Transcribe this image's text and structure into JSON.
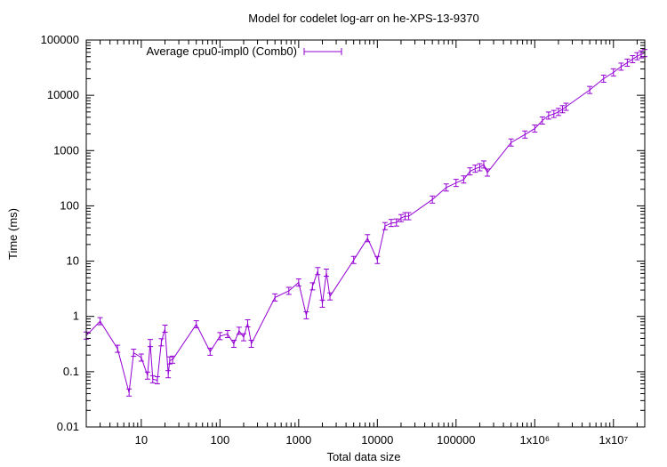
{
  "chart_data": {
    "type": "line",
    "title": "Model for codelet log-arr on he-XPS-13-9370",
    "xlabel": "Total data size",
    "ylabel": "Time (ms)",
    "x_scale": "log",
    "y_scale": "log",
    "xlim": [
      2,
      25000000
    ],
    "ylim": [
      0.01,
      100000
    ],
    "x_ticks": [
      {
        "value": 10,
        "label": "10"
      },
      {
        "value": 100,
        "label": "100"
      },
      {
        "value": 1000,
        "label": "1000"
      },
      {
        "value": 10000,
        "label": "10000"
      },
      {
        "value": 100000,
        "label": "100000"
      },
      {
        "value": 1000000,
        "label": "1x10⁶"
      },
      {
        "value": 10000000,
        "label": "1x10⁷"
      }
    ],
    "y_ticks": [
      {
        "value": 0.01,
        "label": "0.01"
      },
      {
        "value": 0.1,
        "label": "0.1"
      },
      {
        "value": 1,
        "label": "1"
      },
      {
        "value": 10,
        "label": "10"
      },
      {
        "value": 100,
        "label": "100"
      },
      {
        "value": 1000,
        "label": "1000"
      },
      {
        "value": 10000,
        "label": "10000"
      },
      {
        "value": 100000,
        "label": "100000"
      }
    ],
    "grid": false,
    "legend_position": "top-left",
    "series": [
      {
        "name": "Average cpu0-impl0 (Comb0)",
        "color": "#9400d3",
        "points": [
          [
            2,
            0.45
          ],
          [
            3,
            0.82
          ],
          [
            5,
            0.26
          ],
          [
            7,
            0.042
          ],
          [
            8,
            0.22
          ],
          [
            10,
            0.18
          ],
          [
            12,
            0.085
          ],
          [
            13,
            0.33
          ],
          [
            14,
            0.073
          ],
          [
            16,
            0.07
          ],
          [
            18,
            0.34
          ],
          [
            20,
            0.6
          ],
          [
            22,
            0.09
          ],
          [
            23,
            0.16
          ],
          [
            25,
            0.165
          ],
          [
            50,
            0.72
          ],
          [
            75,
            0.23
          ],
          [
            100,
            0.44
          ],
          [
            125,
            0.48
          ],
          [
            150,
            0.32
          ],
          [
            175,
            0.55
          ],
          [
            200,
            0.42
          ],
          [
            225,
            0.75
          ],
          [
            250,
            0.32
          ],
          [
            500,
            2.2
          ],
          [
            750,
            2.9
          ],
          [
            1000,
            4.1
          ],
          [
            1250,
            1.05
          ],
          [
            1500,
            3.5
          ],
          [
            1750,
            6.6
          ],
          [
            2000,
            1.7
          ],
          [
            2250,
            6.2
          ],
          [
            2500,
            2.3
          ],
          [
            5000,
            10.5
          ],
          [
            7500,
            26
          ],
          [
            10000,
            10.5
          ],
          [
            12500,
            43
          ],
          [
            15000,
            49
          ],
          [
            17500,
            50
          ],
          [
            20000,
            60
          ],
          [
            22500,
            65
          ],
          [
            25000,
            65
          ],
          [
            50000,
            130
          ],
          [
            75000,
            215
          ],
          [
            100000,
            260
          ],
          [
            125000,
            300
          ],
          [
            150000,
            420
          ],
          [
            175000,
            470
          ],
          [
            200000,
            500
          ],
          [
            225000,
            560
          ],
          [
            250000,
            400
          ],
          [
            500000,
            1400
          ],
          [
            750000,
            1950
          ],
          [
            1000000,
            2500
          ],
          [
            1250000,
            3500
          ],
          [
            1500000,
            4300
          ],
          [
            1750000,
            4600
          ],
          [
            2000000,
            5000
          ],
          [
            2250000,
            5600
          ],
          [
            2500000,
            6200
          ],
          [
            5000000,
            12500
          ],
          [
            7500000,
            20000
          ],
          [
            10000000,
            26000
          ],
          [
            12500000,
            33000
          ],
          [
            15000000,
            39000
          ],
          [
            17500000,
            45000
          ],
          [
            20000000,
            51000
          ],
          [
            22500000,
            55000
          ],
          [
            25000000,
            58000
          ]
        ]
      }
    ]
  }
}
